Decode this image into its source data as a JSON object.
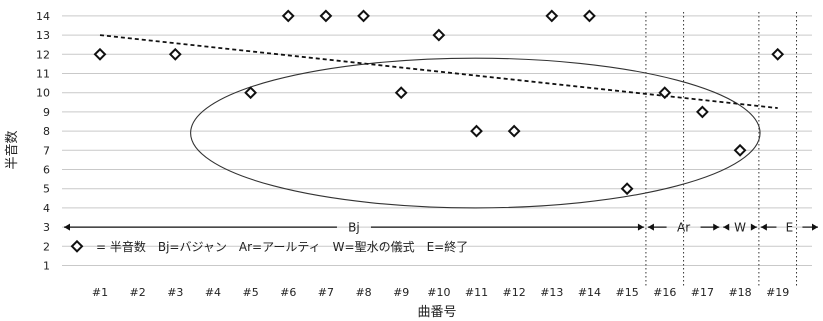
{
  "chart_data": {
    "type": "scatter",
    "xlabel": "曲番号",
    "ylabel": "半音数",
    "categories": [
      "#1",
      "#2",
      "#3",
      "#4",
      "#5",
      "#6",
      "#7",
      "#8",
      "#9",
      "#10",
      "#11",
      "#12",
      "#13",
      "#14",
      "#15",
      "#16",
      "#17",
      "#18",
      "#19"
    ],
    "y_ticks": [
      1,
      2,
      3,
      4,
      5,
      6,
      7,
      8,
      9,
      10,
      11,
      12,
      13,
      14
    ],
    "ylim": [
      0.5,
      14
    ],
    "grid": "horizontal",
    "series": [
      {
        "marker": "diamond",
        "points": [
          {
            "x": "#1",
            "y": 12
          },
          {
            "x": "#3",
            "y": 12
          },
          {
            "x": "#5",
            "y": 10
          },
          {
            "x": "#6",
            "y": 14
          },
          {
            "x": "#7",
            "y": 14
          },
          {
            "x": "#8",
            "y": 14
          },
          {
            "x": "#9",
            "y": 10
          },
          {
            "x": "#10",
            "y": 13
          },
          {
            "x": "#11",
            "y": 8
          },
          {
            "x": "#12",
            "y": 8
          },
          {
            "x": "#13",
            "y": 14
          },
          {
            "x": "#14",
            "y": 14
          },
          {
            "x": "#15",
            "y": 5
          },
          {
            "x": "#16",
            "y": 10
          },
          {
            "x": "#17",
            "y": 9
          },
          {
            "x": "#18",
            "y": 7
          },
          {
            "x": "#19",
            "y": 12
          }
        ]
      }
    ],
    "trendline": {
      "style": "dashed",
      "start": {
        "x": "#1",
        "y": 13
      },
      "end": {
        "x": "#19",
        "y": 9.2
      }
    },
    "section_boundaries": [
      "#15",
      "#16",
      "#18",
      "#19"
    ],
    "sections": [
      {
        "label": "Bj",
        "from": "#1",
        "to": "#15",
        "y": 3
      },
      {
        "label": "Ar",
        "from": "#16",
        "to": "#17",
        "y": 3
      },
      {
        "label": "W",
        "from": "#18",
        "to": "#18",
        "y": 3
      },
      {
        "label": "E",
        "from": "#19",
        "to": "#19",
        "y": 3
      }
    ],
    "ellipse": {
      "x_from": "#5",
      "x_to": "#18",
      "y_from": 4,
      "y_to": 11.8
    },
    "legend": {
      "placement": "bottom-left",
      "text": "= 半音数　Bj=バジャン　Ar=アールティ　W=聖水の儀式　E=終了"
    }
  }
}
